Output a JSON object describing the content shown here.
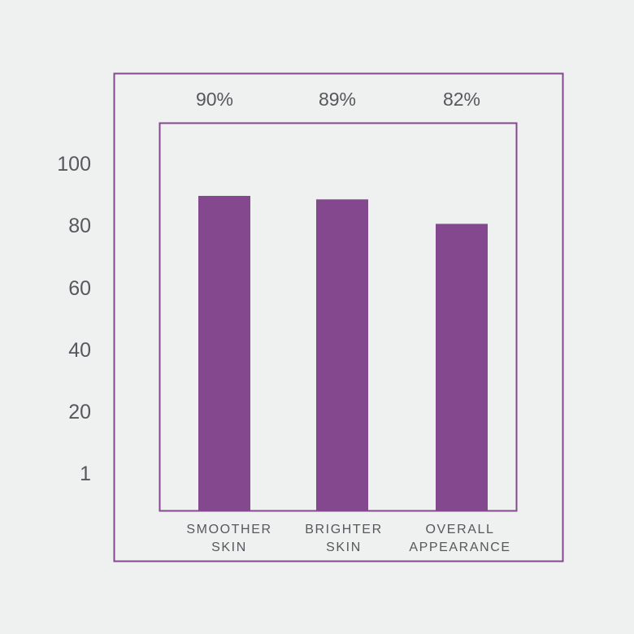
{
  "colors": {
    "accent": "#84488f",
    "text": "#55585c",
    "background": "#eff0f0"
  },
  "chart_data": {
    "type": "bar",
    "categories": [
      [
        "SMOOTHER",
        "SKIN"
      ],
      [
        "BRIGHTER",
        "SKIN"
      ],
      [
        "OVERALL",
        "APPEARANCE"
      ]
    ],
    "values": [
      90,
      89,
      82
    ],
    "value_labels": [
      "90%",
      "89%",
      "82%"
    ],
    "ytick_labels": [
      "100",
      "80",
      "60",
      "40",
      "20",
      "1"
    ],
    "ylim": [
      0,
      100
    ],
    "grid": false,
    "legend": false
  }
}
